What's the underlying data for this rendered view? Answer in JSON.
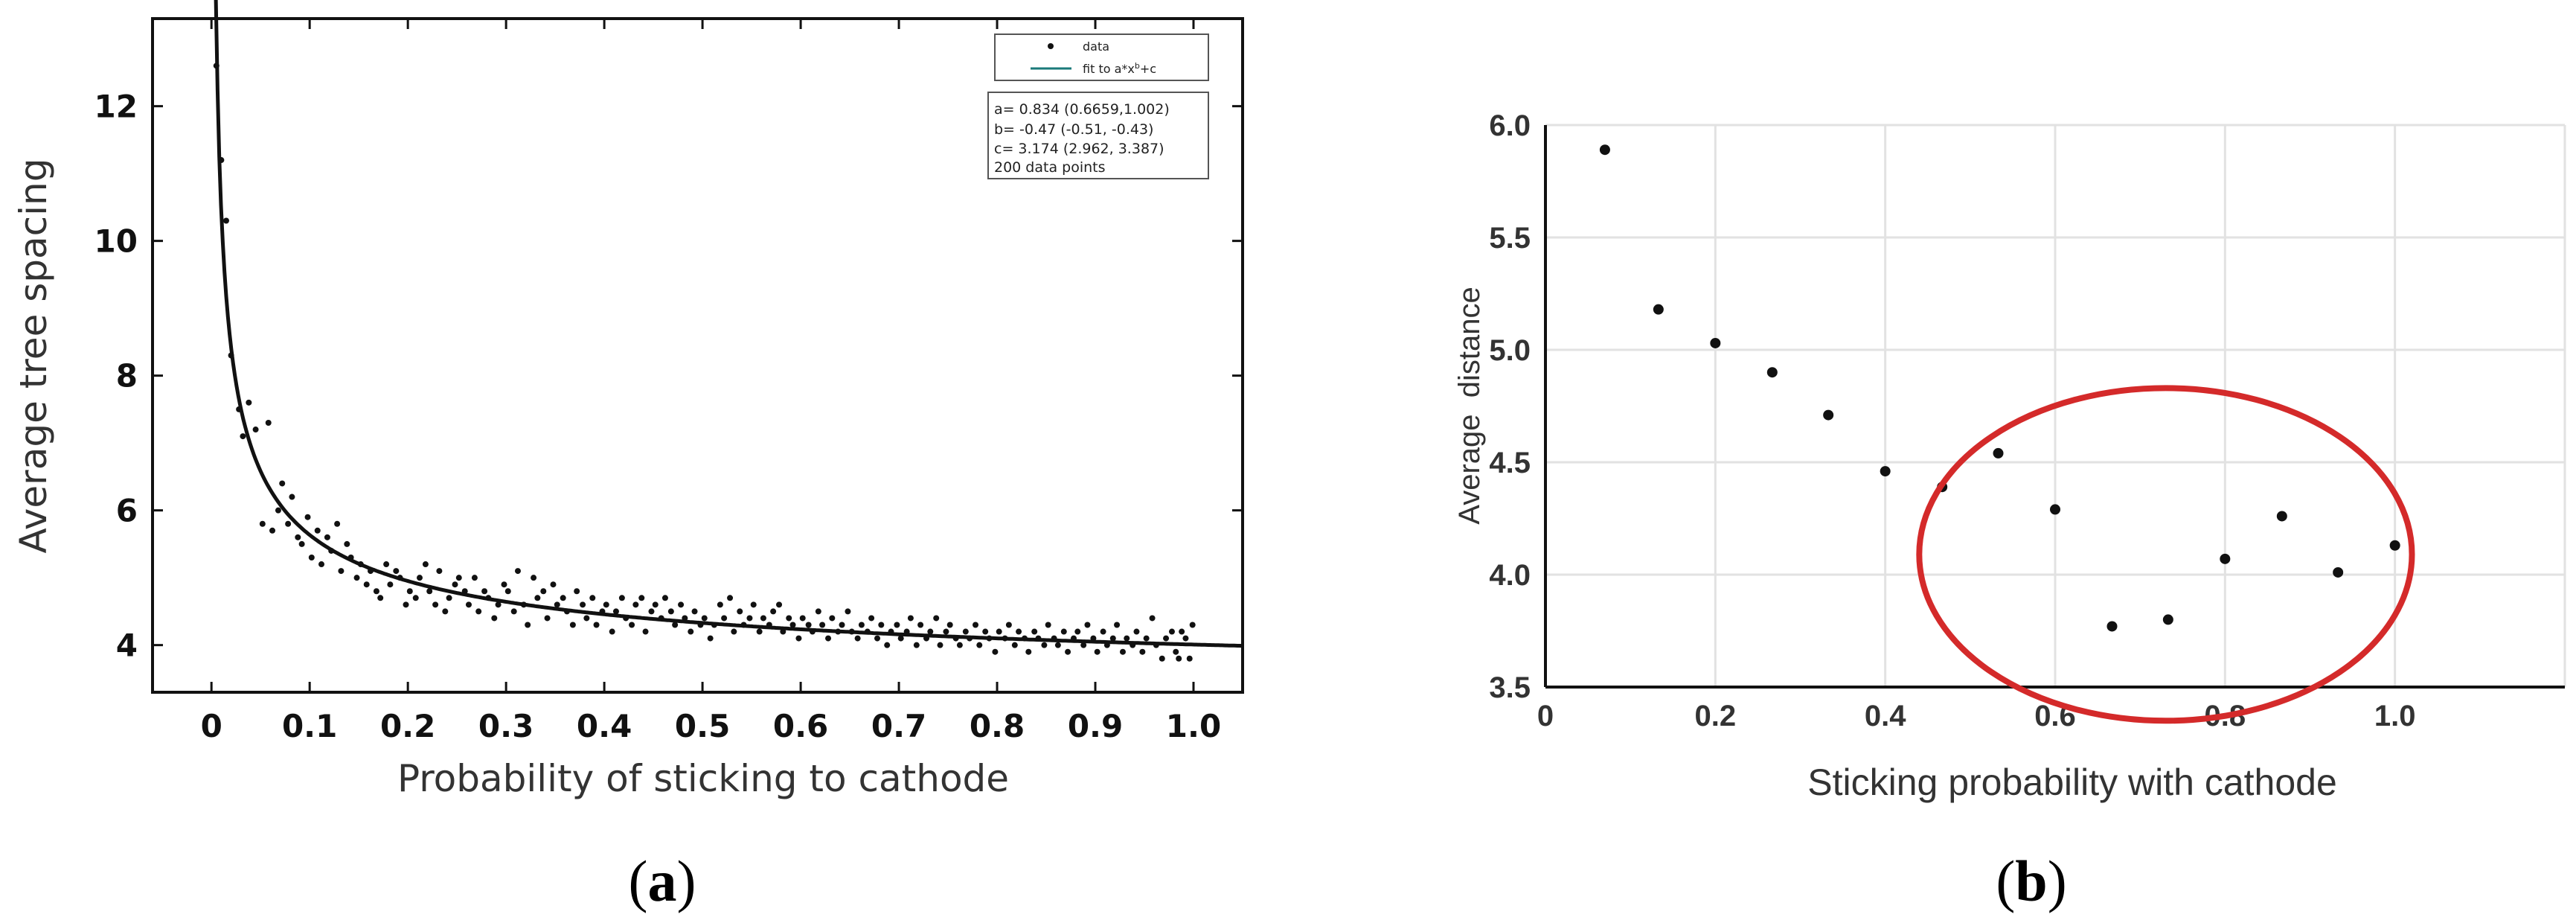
{
  "chart_data": [
    {
      "type": "scatter",
      "panel_label": "a",
      "xlabel": "Probability of sticking to cathode",
      "ylabel": "Average tree spacing",
      "xlim": [
        -0.06,
        1.05
      ],
      "ylim": [
        3.3,
        13.3
      ],
      "x_ticks": [
        0,
        0.1,
        0.2,
        0.3,
        0.4,
        0.5,
        0.6,
        0.7,
        0.8,
        0.9,
        1.0
      ],
      "x_tick_labels": [
        "0",
        "0.1",
        "0.2",
        "0.3",
        "0.4",
        "0.5",
        "0.6",
        "0.7",
        "0.8",
        "0.9",
        "1.0"
      ],
      "y_ticks": [
        4,
        6,
        8,
        10,
        12
      ],
      "y_tick_labels": [
        "4",
        "6",
        "8",
        "10",
        "12"
      ],
      "legend": {
        "position": "top-right",
        "entries": [
          {
            "label": "data",
            "marker": "dot"
          },
          {
            "label": "fit to a*x^b+c",
            "marker": "line",
            "color": "#1a7a7a"
          }
        ]
      },
      "fit_info": [
        "a= 0.834 (0.6659,1.002)",
        "b= -0.47 (-0.51, -0.43)",
        "c= 3.174 (2.962, 3.387)",
        "200 data points"
      ],
      "fit": {
        "a": 0.834,
        "b": -0.47,
        "c": 3.174
      },
      "series": [
        {
          "name": "data",
          "points": [
            [
              0.005,
              12.6
            ],
            [
              0.01,
              11.2
            ],
            [
              0.015,
              10.3
            ],
            [
              0.02,
              8.3
            ],
            [
              0.028,
              7.5
            ],
            [
              0.032,
              7.1
            ],
            [
              0.038,
              7.6
            ],
            [
              0.045,
              7.2
            ],
            [
              0.052,
              5.8
            ],
            [
              0.058,
              7.3
            ],
            [
              0.062,
              5.7
            ],
            [
              0.068,
              6.0
            ],
            [
              0.072,
              6.4
            ],
            [
              0.078,
              5.8
            ],
            [
              0.082,
              6.2
            ],
            [
              0.088,
              5.6
            ],
            [
              0.092,
              5.5
            ],
            [
              0.098,
              5.9
            ],
            [
              0.102,
              5.3
            ],
            [
              0.108,
              5.7
            ],
            [
              0.112,
              5.2
            ],
            [
              0.118,
              5.6
            ],
            [
              0.122,
              5.4
            ],
            [
              0.128,
              5.8
            ],
            [
              0.132,
              5.1
            ],
            [
              0.138,
              5.5
            ],
            [
              0.142,
              5.3
            ],
            [
              0.148,
              5.0
            ],
            [
              0.152,
              5.2
            ],
            [
              0.158,
              4.9
            ],
            [
              0.162,
              5.1
            ],
            [
              0.168,
              4.8
            ],
            [
              0.172,
              4.7
            ],
            [
              0.178,
              5.2
            ],
            [
              0.182,
              4.9
            ],
            [
              0.188,
              5.1
            ],
            [
              0.192,
              5.0
            ],
            [
              0.198,
              4.6
            ],
            [
              0.202,
              4.8
            ],
            [
              0.208,
              4.7
            ],
            [
              0.212,
              5.0
            ],
            [
              0.218,
              5.2
            ],
            [
              0.222,
              4.8
            ],
            [
              0.228,
              4.6
            ],
            [
              0.232,
              5.1
            ],
            [
              0.238,
              4.5
            ],
            [
              0.242,
              4.7
            ],
            [
              0.248,
              4.9
            ],
            [
              0.252,
              5.0
            ],
            [
              0.258,
              4.8
            ],
            [
              0.262,
              4.6
            ],
            [
              0.268,
              5.0
            ],
            [
              0.272,
              4.5
            ],
            [
              0.278,
              4.8
            ],
            [
              0.282,
              4.7
            ],
            [
              0.288,
              4.4
            ],
            [
              0.292,
              4.6
            ],
            [
              0.298,
              4.9
            ],
            [
              0.302,
              4.8
            ],
            [
              0.308,
              4.5
            ],
            [
              0.312,
              5.1
            ],
            [
              0.318,
              4.6
            ],
            [
              0.322,
              4.3
            ],
            [
              0.328,
              5.0
            ],
            [
              0.332,
              4.7
            ],
            [
              0.338,
              4.8
            ],
            [
              0.342,
              4.4
            ],
            [
              0.348,
              4.9
            ],
            [
              0.352,
              4.6
            ],
            [
              0.358,
              4.7
            ],
            [
              0.362,
              4.5
            ],
            [
              0.368,
              4.3
            ],
            [
              0.372,
              4.8
            ],
            [
              0.378,
              4.6
            ],
            [
              0.382,
              4.4
            ],
            [
              0.388,
              4.7
            ],
            [
              0.392,
              4.3
            ],
            [
              0.398,
              4.5
            ],
            [
              0.402,
              4.6
            ],
            [
              0.408,
              4.2
            ],
            [
              0.412,
              4.5
            ],
            [
              0.418,
              4.7
            ],
            [
              0.422,
              4.4
            ],
            [
              0.428,
              4.3
            ],
            [
              0.432,
              4.6
            ],
            [
              0.438,
              4.7
            ],
            [
              0.442,
              4.2
            ],
            [
              0.448,
              4.5
            ],
            [
              0.452,
              4.6
            ],
            [
              0.458,
              4.4
            ],
            [
              0.462,
              4.7
            ],
            [
              0.468,
              4.5
            ],
            [
              0.472,
              4.3
            ],
            [
              0.478,
              4.6
            ],
            [
              0.482,
              4.4
            ],
            [
              0.488,
              4.2
            ],
            [
              0.492,
              4.5
            ],
            [
              0.498,
              4.3
            ],
            [
              0.502,
              4.4
            ],
            [
              0.508,
              4.1
            ],
            [
              0.512,
              4.3
            ],
            [
              0.518,
              4.6
            ],
            [
              0.522,
              4.4
            ],
            [
              0.528,
              4.7
            ],
            [
              0.532,
              4.2
            ],
            [
              0.538,
              4.5
            ],
            [
              0.542,
              4.3
            ],
            [
              0.548,
              4.4
            ],
            [
              0.552,
              4.6
            ],
            [
              0.558,
              4.2
            ],
            [
              0.562,
              4.4
            ],
            [
              0.568,
              4.3
            ],
            [
              0.572,
              4.5
            ],
            [
              0.578,
              4.6
            ],
            [
              0.582,
              4.2
            ],
            [
              0.588,
              4.4
            ],
            [
              0.592,
              4.3
            ],
            [
              0.598,
              4.1
            ],
            [
              0.602,
              4.4
            ],
            [
              0.608,
              4.3
            ],
            [
              0.612,
              4.2
            ],
            [
              0.618,
              4.5
            ],
            [
              0.622,
              4.3
            ],
            [
              0.628,
              4.1
            ],
            [
              0.632,
              4.4
            ],
            [
              0.638,
              4.2
            ],
            [
              0.642,
              4.3
            ],
            [
              0.648,
              4.5
            ],
            [
              0.652,
              4.2
            ],
            [
              0.658,
              4.1
            ],
            [
              0.662,
              4.3
            ],
            [
              0.668,
              4.2
            ],
            [
              0.672,
              4.4
            ],
            [
              0.678,
              4.1
            ],
            [
              0.682,
              4.3
            ],
            [
              0.688,
              4.0
            ],
            [
              0.692,
              4.2
            ],
            [
              0.698,
              4.3
            ],
            [
              0.702,
              4.1
            ],
            [
              0.708,
              4.2
            ],
            [
              0.712,
              4.4
            ],
            [
              0.718,
              4.0
            ],
            [
              0.722,
              4.3
            ],
            [
              0.728,
              4.1
            ],
            [
              0.732,
              4.2
            ],
            [
              0.738,
              4.4
            ],
            [
              0.742,
              4.0
            ],
            [
              0.748,
              4.2
            ],
            [
              0.752,
              4.3
            ],
            [
              0.758,
              4.1
            ],
            [
              0.762,
              4.0
            ],
            [
              0.768,
              4.2
            ],
            [
              0.772,
              4.1
            ],
            [
              0.778,
              4.3
            ],
            [
              0.782,
              4.0
            ],
            [
              0.788,
              4.2
            ],
            [
              0.792,
              4.1
            ],
            [
              0.798,
              3.9
            ],
            [
              0.802,
              4.2
            ],
            [
              0.808,
              4.1
            ],
            [
              0.812,
              4.3
            ],
            [
              0.818,
              4.0
            ],
            [
              0.822,
              4.2
            ],
            [
              0.828,
              4.1
            ],
            [
              0.832,
              3.9
            ],
            [
              0.838,
              4.2
            ],
            [
              0.842,
              4.1
            ],
            [
              0.848,
              4.0
            ],
            [
              0.852,
              4.3
            ],
            [
              0.858,
              4.1
            ],
            [
              0.862,
              4.0
            ],
            [
              0.868,
              4.2
            ],
            [
              0.872,
              3.9
            ],
            [
              0.878,
              4.1
            ],
            [
              0.882,
              4.2
            ],
            [
              0.888,
              4.0
            ],
            [
              0.892,
              4.3
            ],
            [
              0.898,
              4.1
            ],
            [
              0.902,
              3.9
            ],
            [
              0.908,
              4.2
            ],
            [
              0.912,
              4.0
            ],
            [
              0.918,
              4.1
            ],
            [
              0.922,
              4.3
            ],
            [
              0.928,
              3.9
            ],
            [
              0.932,
              4.1
            ],
            [
              0.938,
              4.0
            ],
            [
              0.942,
              4.2
            ],
            [
              0.948,
              3.9
            ],
            [
              0.952,
              4.1
            ],
            [
              0.958,
              4.4
            ],
            [
              0.962,
              4.0
            ],
            [
              0.968,
              3.8
            ],
            [
              0.972,
              4.1
            ],
            [
              0.978,
              4.2
            ],
            [
              0.982,
              3.9
            ],
            [
              0.985,
              3.8
            ],
            [
              0.988,
              4.2
            ],
            [
              0.992,
              4.1
            ],
            [
              0.996,
              3.8
            ],
            [
              0.999,
              4.3
            ]
          ]
        }
      ]
    },
    {
      "type": "scatter",
      "panel_label": "b",
      "xlabel": "Sticking probability with cathode",
      "ylabel": "Average  distance",
      "xlim": [
        0,
        1.2
      ],
      "ylim": [
        3.5,
        6.0
      ],
      "x_ticks": [
        0,
        0.2,
        0.4,
        0.6,
        0.8,
        1.0
      ],
      "x_tick_labels": [
        "0",
        "0.2",
        "0.4",
        "0.6",
        "0.8",
        "1.0"
      ],
      "x_grid": [
        0.2,
        0.4,
        0.6,
        0.8,
        1.0,
        1.2
      ],
      "y_ticks": [
        3.5,
        4.0,
        4.5,
        5.0,
        5.5,
        6.0
      ],
      "y_tick_labels": [
        "3.5",
        "4.0",
        "4.5",
        "5.0",
        "5.5",
        "6.0"
      ],
      "grid": true,
      "series": [
        {
          "points": [
            [
              0.07,
              5.89
            ],
            [
              0.133,
              5.18
            ],
            [
              0.2,
              5.03
            ],
            [
              0.267,
              4.9
            ],
            [
              0.333,
              4.71
            ],
            [
              0.4,
              4.46
            ],
            [
              0.467,
              4.39
            ],
            [
              0.533,
              4.54
            ],
            [
              0.6,
              4.29
            ],
            [
              0.667,
              3.77
            ],
            [
              0.733,
              3.8
            ],
            [
              0.8,
              4.07
            ],
            [
              0.867,
              4.26
            ],
            [
              0.933,
              4.01
            ],
            [
              1.0,
              4.13
            ]
          ]
        }
      ],
      "annotation": {
        "shape": "ellipse",
        "color": "#d42a2a",
        "center": [
          0.73,
          4.09
        ],
        "rx": 0.29,
        "ry": 0.74
      }
    }
  ],
  "captions": [
    {
      "open": "(",
      "letter": "a",
      "close": ")"
    },
    {
      "open": "(",
      "letter": "b",
      "close": ")"
    }
  ]
}
